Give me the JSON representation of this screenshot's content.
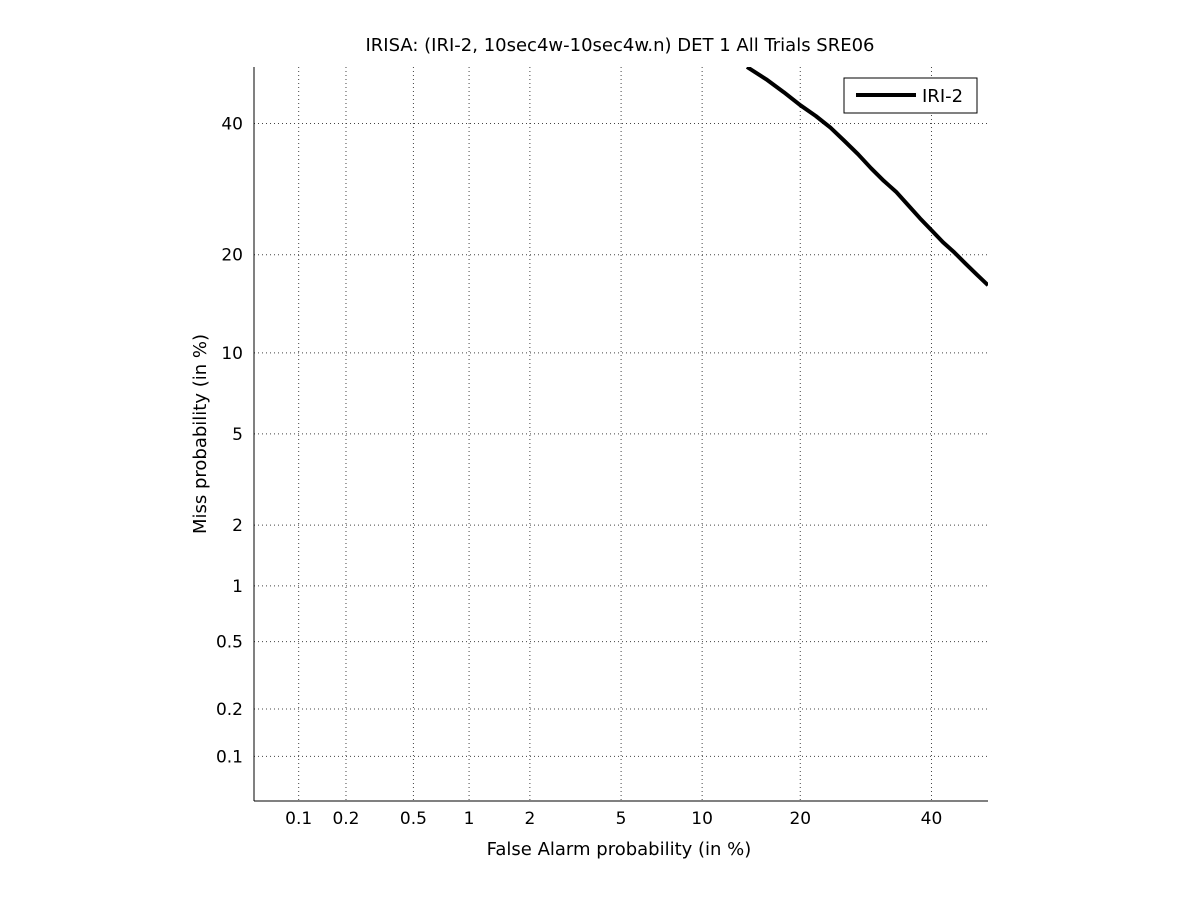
{
  "chart_data": {
    "type": "line",
    "title": "IRISA: (IRI-2, 10sec4w-10sec4w.n) DET 1 All Trials SRE06",
    "xlabel": "False Alarm probability (in %)",
    "ylabel": "Miss probability (in %)",
    "x_scale": "normal-deviate (probit)",
    "y_scale": "normal-deviate (probit)",
    "xlim": [
      0.05,
      50
    ],
    "ylim": [
      0.05,
      50
    ],
    "x_ticks": [
      0.1,
      0.2,
      0.5,
      1,
      2,
      5,
      10,
      20,
      40
    ],
    "x_tick_labels": [
      "0.1",
      "0.2",
      "0.5",
      "1",
      "2",
      "5",
      "10",
      "20",
      "40"
    ],
    "y_ticks": [
      0.1,
      0.2,
      0.5,
      1,
      2,
      5,
      10,
      20,
      40
    ],
    "y_tick_labels": [
      "0.1",
      "0.2",
      "0.5",
      "1",
      "2",
      "5",
      "10",
      "20",
      "40"
    ],
    "grid": true,
    "legend_position": "top-right",
    "series": [
      {
        "name": "IRI-2",
        "color": "#000000",
        "x": [
          14,
          16,
          18,
          20,
          22,
          24,
          26,
          28,
          30,
          32,
          34,
          36,
          38,
          40,
          42,
          44,
          46,
          48,
          50
        ],
        "y": [
          50,
          47.8,
          45.5,
          43.2,
          41.3,
          39.3,
          37.0,
          34.8,
          32.5,
          30.5,
          28.8,
          26.8,
          24.9,
          23.2,
          21.6,
          20.3,
          18.9,
          17.6,
          16.4
        ]
      }
    ]
  }
}
